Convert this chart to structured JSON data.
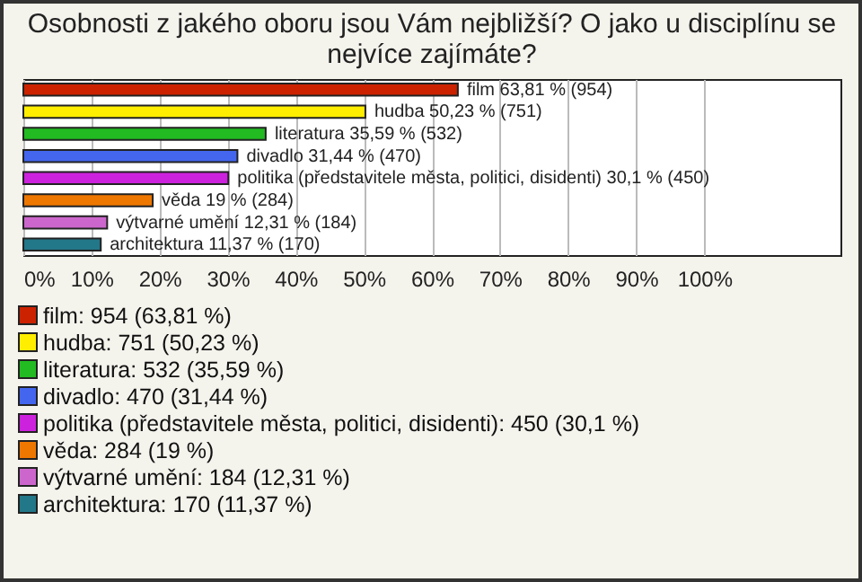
{
  "chart_data": {
    "type": "bar",
    "orientation": "horizontal",
    "title": "Osobnosti z jakého oboru jsou Vám nejbližší? O jako u disciplínu se nejvíce zajímáte?",
    "categories": [
      null,
      null,
      null,
      null,
      null,
      null,
      null,
      null
    ],
    "values": [
      63.81,
      50.23,
      35.59,
      31.44,
      30.1,
      19,
      12.31,
      11.37
    ],
    "value_labels": [
      "film 63,81 % (954)",
      "hudba 50,23 % (751)",
      "literatura 35,59 % (532)",
      "divadlo 31,44 % (470)",
      "politika (představitele města, politici, disidenti) 30,1 % (450)",
      "věda 19 % (284)",
      "výtvarné umění 12,31 % (184)",
      "architektura 11,37 % (170)"
    ],
    "colors": [
      "#cc2200",
      "#ffee00",
      "#22bb22",
      "#4466ee",
      "#cc22dd",
      "#ee7700",
      "#cc66cc",
      "#227788"
    ],
    "annotations": [
      "film: 954 (63,81 %)",
      "hudba: 751 (50,23 %)",
      "literatura: 532 (35,59 %)",
      "divadlo: 470 (31,44 %)",
      "politika (představitele města, politici, disidenti): 450 (30,1 %)",
      "věda: 284 (19 %)",
      "výtvarné umění: 184 (12,31 %)",
      "architektura: 170 (11,37 %)"
    ],
    "xlim": [
      0,
      120
    ],
    "xticks": [
      {
        "value": 0,
        "label": "0%"
      },
      {
        "value": 10,
        "label": "10%"
      },
      {
        "value": 20,
        "label": "20%"
      },
      {
        "value": 30,
        "label": "30%"
      },
      {
        "value": 40,
        "label": "40%"
      },
      {
        "value": 50,
        "label": "50%"
      },
      {
        "value": 60,
        "label": "60%"
      },
      {
        "value": 70,
        "label": "70%"
      },
      {
        "value": 80,
        "label": "80%"
      },
      {
        "value": 90,
        "label": "90%"
      },
      {
        "value": 100,
        "label": "100%"
      }
    ],
    "grid": "x",
    "tick_labels": "x"
  }
}
